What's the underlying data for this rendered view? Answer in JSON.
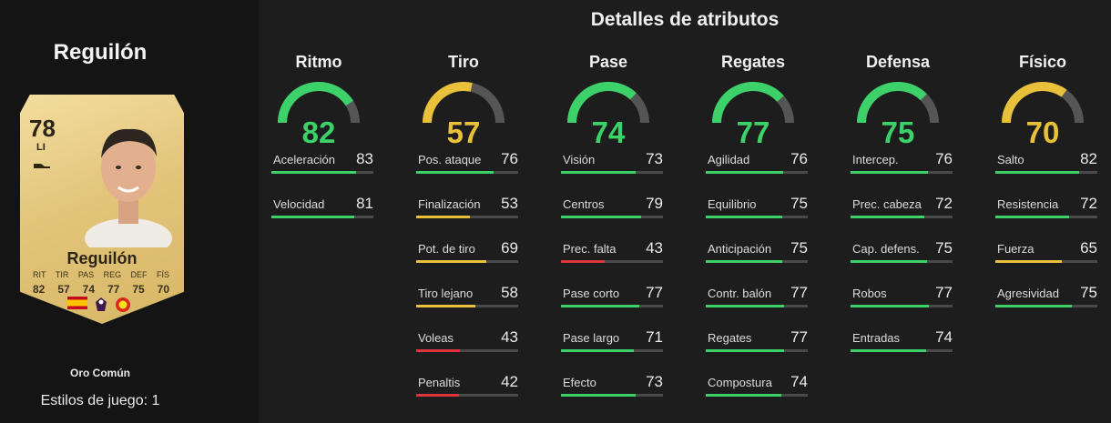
{
  "player": {
    "name": "Reguilón",
    "rating": "78",
    "position": "LI",
    "card_stat_labels": [
      "RIT",
      "TIR",
      "PAS",
      "REG",
      "DEF",
      "FÍS"
    ],
    "card_stat_values": [
      "82",
      "57",
      "74",
      "77",
      "75",
      "70"
    ],
    "rarity": "Oro Común",
    "playstyles": "Estilos de juego: 1"
  },
  "section_title": "Detalles de atributos",
  "colors": {
    "green": "#3dd16a",
    "yellow": "#e8c03a",
    "red": "#e0343c",
    "track": "#4a4a4a"
  },
  "categories": [
    {
      "name": "Ritmo",
      "value": 82,
      "tier": "green",
      "attributes": [
        {
          "label": "Aceleración",
          "value": 83
        },
        {
          "label": "Velocidad",
          "value": 81
        }
      ]
    },
    {
      "name": "Tiro",
      "value": 57,
      "tier": "yellow",
      "attributes": [
        {
          "label": "Pos. ataque",
          "value": 76
        },
        {
          "label": "Finalización",
          "value": 53
        },
        {
          "label": "Pot. de tiro",
          "value": 69
        },
        {
          "label": "Tiro lejano",
          "value": 58
        },
        {
          "label": "Voleas",
          "value": 43
        },
        {
          "label": "Penaltis",
          "value": 42
        }
      ]
    },
    {
      "name": "Pase",
      "value": 74,
      "tier": "green",
      "attributes": [
        {
          "label": "Visión",
          "value": 73
        },
        {
          "label": "Centros",
          "value": 79
        },
        {
          "label": "Prec. falta",
          "value": 43
        },
        {
          "label": "Pase corto",
          "value": 77
        },
        {
          "label": "Pase largo",
          "value": 71
        },
        {
          "label": "Efecto",
          "value": 73
        }
      ]
    },
    {
      "name": "Regates",
      "value": 77,
      "tier": "green",
      "attributes": [
        {
          "label": "Agilidad",
          "value": 76
        },
        {
          "label": "Equilibrio",
          "value": 75
        },
        {
          "label": "Anticipación",
          "value": 75
        },
        {
          "label": "Contr. balón",
          "value": 77
        },
        {
          "label": "Regates",
          "value": 77
        },
        {
          "label": "Compostura",
          "value": 74
        }
      ]
    },
    {
      "name": "Defensa",
      "value": 75,
      "tier": "green",
      "attributes": [
        {
          "label": "Intercep.",
          "value": 76
        },
        {
          "label": "Prec. cabeza",
          "value": 72
        },
        {
          "label": "Cap. defens.",
          "value": 75
        },
        {
          "label": "Robos",
          "value": 77
        },
        {
          "label": "Entradas",
          "value": 74
        }
      ]
    },
    {
      "name": "Físico",
      "value": 70,
      "tier": "yellow",
      "attributes": [
        {
          "label": "Salto",
          "value": 82
        },
        {
          "label": "Resistencia",
          "value": 72
        },
        {
          "label": "Fuerza",
          "value": 65
        },
        {
          "label": "Agresividad",
          "value": 75
        }
      ]
    }
  ]
}
